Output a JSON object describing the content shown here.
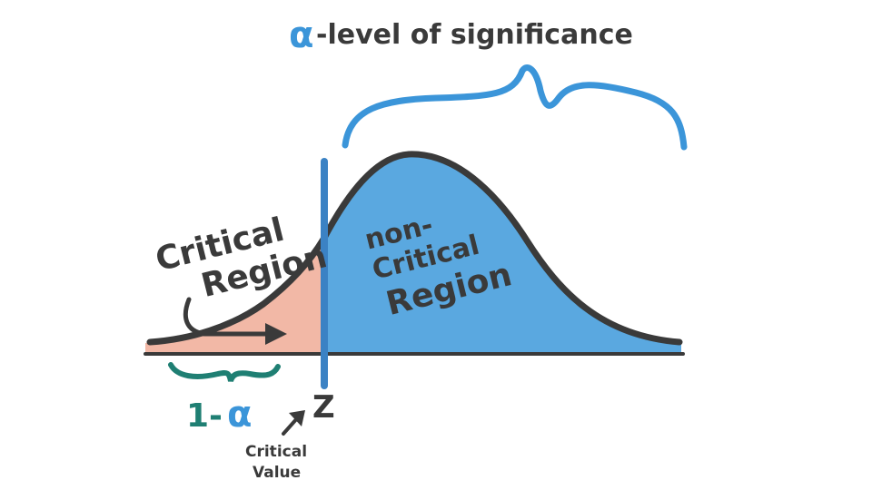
{
  "title": {
    "alpha_symbol": "α",
    "text": "-level of significance"
  },
  "labels": {
    "critical_region_line1": "Critical",
    "critical_region_line2": "Region",
    "non_critical_line1": "non-",
    "non_critical_line2": "Critical",
    "non_critical_line3": "Region",
    "z": "Z",
    "one_minus": "1-",
    "alpha": "α",
    "critical_value_line1": "Critical",
    "critical_value_line2": "Value"
  },
  "colors": {
    "curve": "#3a3a3a",
    "critical_fill": "#f2b8a6",
    "non_critical_fill": "#5aa8e0",
    "alpha_blue": "#3b95d9",
    "teal": "#1f7f73",
    "text_dark": "#3a3a3a"
  }
}
